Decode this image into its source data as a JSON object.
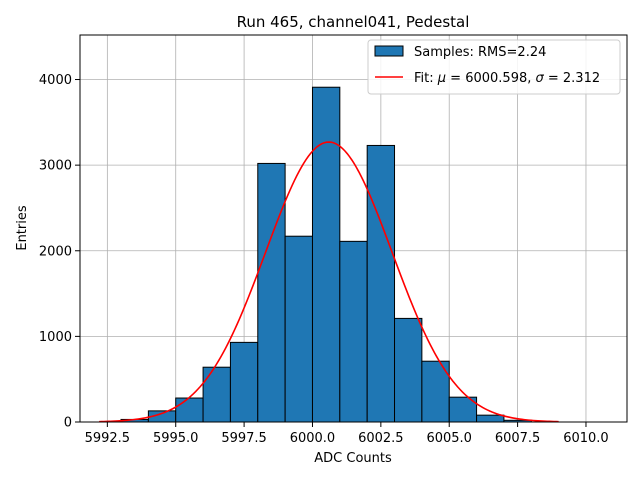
{
  "chart_data": {
    "type": "bar",
    "title": "Run 465, channel041, Pedestal",
    "xlabel": "ADC Counts",
    "ylabel": "Entries",
    "xlim": [
      5991.5,
      6011.5
    ],
    "ylim": [
      0,
      4520
    ],
    "xticks": [
      5992.5,
      5995.0,
      5997.5,
      6000.0,
      6002.5,
      6005.0,
      6007.5,
      6010.0
    ],
    "xtick_labels": [
      "5992.5",
      "5995.0",
      "5997.5",
      "6000.0",
      "6002.5",
      "6005.0",
      "6007.5",
      "6010.0"
    ],
    "yticks": [
      0,
      1000,
      2000,
      3000,
      4000
    ],
    "ytick_labels": [
      "0",
      "1000",
      "2000",
      "3000",
      "4000"
    ],
    "grid": true,
    "legend_position": "top-right",
    "bar_color": "#1f77b4",
    "fit_color": "#ff0000",
    "histogram": {
      "name": "Samples: RMS=2.24",
      "bins": [
        {
          "x0": 5993,
          "x1": 5994,
          "value": 30
        },
        {
          "x0": 5994,
          "x1": 5995,
          "value": 130
        },
        {
          "x0": 5995,
          "x1": 5996,
          "value": 280
        },
        {
          "x0": 5996,
          "x1": 5997,
          "value": 640
        },
        {
          "x0": 5997,
          "x1": 5998,
          "value": 930
        },
        {
          "x0": 5998,
          "x1": 5999,
          "value": 3020
        },
        {
          "x0": 5999,
          "x1": 6000,
          "value": 2170
        },
        {
          "x0": 6000,
          "x1": 6001,
          "value": 3910
        },
        {
          "x0": 6001,
          "x1": 6002,
          "value": 2110
        },
        {
          "x0": 6002,
          "x1": 6003,
          "value": 3230
        },
        {
          "x0": 6003,
          "x1": 6004,
          "value": 1210
        },
        {
          "x0": 6004,
          "x1": 6005,
          "value": 710
        },
        {
          "x0": 6005,
          "x1": 6006,
          "value": 290
        },
        {
          "x0": 6006,
          "x1": 6007,
          "value": 80
        },
        {
          "x0": 6007,
          "x1": 6008,
          "value": 20
        }
      ]
    },
    "fit": {
      "name_prefix": "Fit: ",
      "mu_symbol": "μ",
      "mu_text": " = 6000.598, ",
      "sigma_symbol": "σ",
      "sigma_text": " = 2.312",
      "mu": 6000.598,
      "sigma": 2.312,
      "amplitude": 3270,
      "x_range": [
        5992.2,
        6009.0
      ]
    }
  }
}
